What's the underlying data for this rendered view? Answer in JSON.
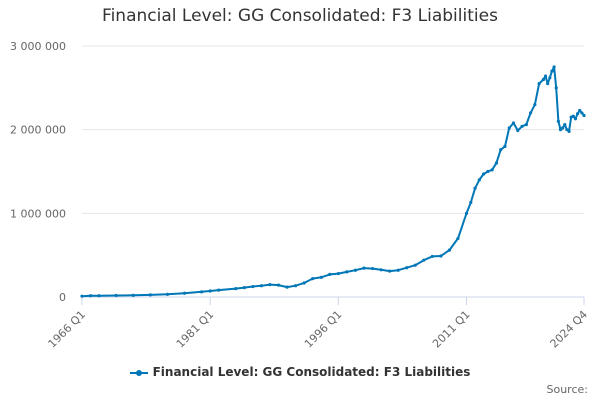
{
  "chart_data": {
    "type": "line",
    "title": "Financial Level: GG Consolidated: F3 Liabilities",
    "xlabel": "",
    "ylabel": "",
    "ylim": [
      0,
      3000000
    ],
    "y_ticks": [
      0,
      1000000,
      2000000,
      3000000
    ],
    "y_tick_labels": [
      "0",
      "1 000 000",
      "2 000 000",
      "3 000 000"
    ],
    "x_tick_labels": [
      "1966 Q1",
      "1981 Q1",
      "1996 Q1",
      "2011 Q1",
      "2024 Q4"
    ],
    "x_tick_years": [
      1966.0,
      1981.0,
      1996.0,
      2011.0,
      2024.75
    ],
    "x_range": [
      1966.0,
      2024.75
    ],
    "grid": true,
    "legend_position": "bottom",
    "series": [
      {
        "name": "Financial Level: GG Consolidated: F3 Liabilities",
        "color": "#0077b6",
        "x": [
          1966.0,
          1967.0,
          1968.0,
          1970.0,
          1972.0,
          1974.0,
          1976.0,
          1978.0,
          1980.0,
          1981.0,
          1982.0,
          1984.0,
          1985.0,
          1986.0,
          1987.0,
          1988.0,
          1989.0,
          1990.0,
          1991.0,
          1992.0,
          1993.0,
          1994.0,
          1995.0,
          1996.0,
          1997.0,
          1998.0,
          1999.0,
          2000.0,
          2001.0,
          2002.0,
          2003.0,
          2004.0,
          2005.0,
          2006.0,
          2007.0,
          2008.0,
          2009.0,
          2010.0,
          2011.0,
          2011.5,
          2012.0,
          2012.5,
          2013.0,
          2013.5,
          2014.0,
          2014.5,
          2015.0,
          2015.5,
          2016.0,
          2016.5,
          2017.0,
          2017.5,
          2018.0,
          2018.5,
          2019.0,
          2019.5,
          2020.0,
          2020.25,
          2020.5,
          2020.75,
          2021.0,
          2021.25,
          2021.5,
          2021.75,
          2022.0,
          2022.25,
          2022.5,
          2022.75,
          2023.0,
          2023.25,
          2023.5,
          2023.75,
          2024.0,
          2024.25,
          2024.5,
          2024.75
        ],
        "values": [
          10000,
          15000,
          15000,
          18000,
          20000,
          25000,
          32000,
          45000,
          62000,
          72000,
          82000,
          100000,
          112000,
          125000,
          135000,
          148000,
          142000,
          118000,
          135000,
          168000,
          220000,
          235000,
          270000,
          280000,
          300000,
          320000,
          345000,
          340000,
          325000,
          310000,
          320000,
          350000,
          380000,
          440000,
          485000,
          490000,
          560000,
          700000,
          1000000,
          1130000,
          1300000,
          1400000,
          1470000,
          1500000,
          1520000,
          1600000,
          1760000,
          1800000,
          2020000,
          2080000,
          1990000,
          2040000,
          2060000,
          2200000,
          2300000,
          2550000,
          2600000,
          2640000,
          2550000,
          2620000,
          2700000,
          2750000,
          2500000,
          2100000,
          2000000,
          2020000,
          2060000,
          2000000,
          1980000,
          2150000,
          2160000,
          2130000,
          2190000,
          2230000,
          2200000,
          2170000
        ]
      }
    ],
    "source_label": "Source:"
  }
}
